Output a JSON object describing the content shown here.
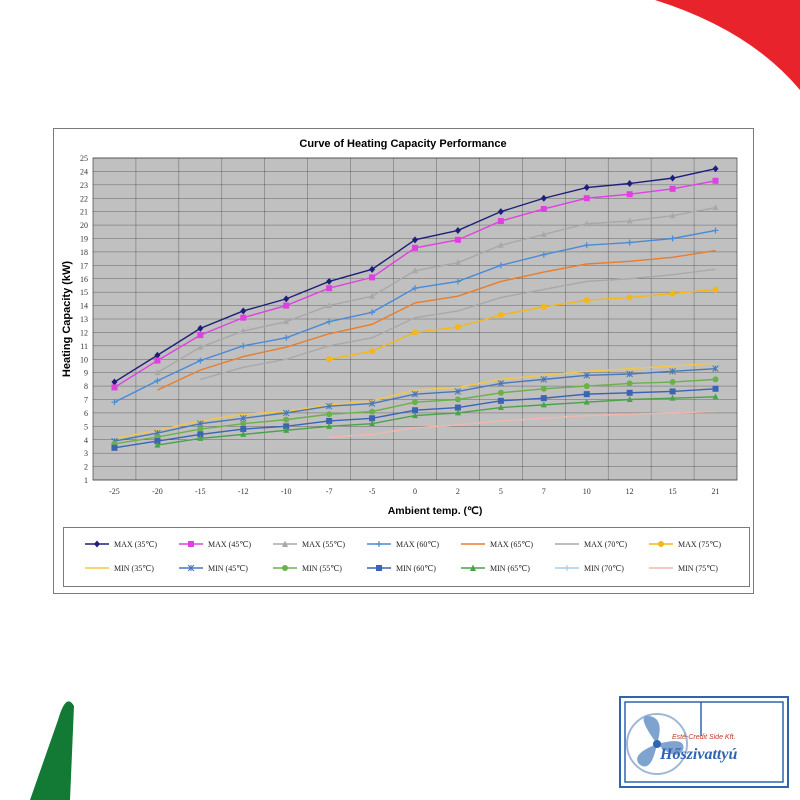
{
  "chart_data": {
    "type": "line",
    "title": "Curve of Heating Capacity Performance",
    "xlabel": "Ambient temp.  (℃)",
    "ylabel": "Heating Capacity (kW)",
    "x_scale": "categorical",
    "categories": [
      "-25",
      "-20",
      "-15",
      "-12",
      "-10",
      "-7",
      "-5",
      "0",
      "2",
      "5",
      "7",
      "10",
      "12",
      "15",
      "21"
    ],
    "ylim": [
      1,
      25
    ],
    "yticks": [
      1,
      2,
      3,
      4,
      5,
      6,
      7,
      8,
      9,
      10,
      11,
      12,
      13,
      14,
      15,
      16,
      17,
      18,
      19,
      20,
      21,
      22,
      23,
      24,
      25
    ],
    "grid": true,
    "legend_position": "bottom",
    "series": [
      {
        "name": "MAX (35℃)",
        "color": "#1f1f7a",
        "marker": "diamond",
        "values": [
          8.3,
          10.3,
          12.3,
          13.6,
          14.5,
          15.8,
          16.7,
          18.9,
          19.6,
          21.0,
          22.0,
          22.8,
          23.1,
          23.5,
          24.2
        ]
      },
      {
        "name": "MAX (45℃)",
        "color": "#e040e0",
        "marker": "square",
        "values": [
          7.9,
          9.9,
          11.8,
          13.1,
          14.0,
          15.3,
          16.1,
          18.3,
          18.9,
          20.3,
          21.2,
          22.0,
          22.3,
          22.7,
          23.3
        ]
      },
      {
        "name": "MAX (55℃)",
        "color": "#a8a8a8",
        "marker": "triangle",
        "values": [
          null,
          9.0,
          10.9,
          12.1,
          12.8,
          14.0,
          14.7,
          16.6,
          17.2,
          18.5,
          19.3,
          20.1,
          20.3,
          20.7,
          21.3
        ]
      },
      {
        "name": "MAX (60℃)",
        "color": "#4a8ad6",
        "marker": "plus",
        "values": [
          6.8,
          8.4,
          9.9,
          11.0,
          11.6,
          12.8,
          13.5,
          15.3,
          15.8,
          17.0,
          17.8,
          18.5,
          18.7,
          19.0,
          19.6
        ]
      },
      {
        "name": "MAX (65℃)",
        "color": "#e87d2b",
        "marker": "none",
        "values": [
          null,
          7.7,
          9.2,
          10.2,
          10.9,
          11.9,
          12.6,
          14.2,
          14.7,
          15.8,
          16.5,
          17.1,
          17.3,
          17.6,
          18.1
        ]
      },
      {
        "name": "MAX (70℃)",
        "color": "#a8a8a8",
        "marker": "none",
        "values": [
          null,
          null,
          8.5,
          9.4,
          10.0,
          11.0,
          11.6,
          13.1,
          13.6,
          14.6,
          15.2,
          15.8,
          16.0,
          16.3,
          16.7
        ]
      },
      {
        "name": "MAX (75℃)",
        "color": "#f3b817",
        "marker": "circle",
        "values": [
          null,
          null,
          null,
          null,
          null,
          10.0,
          10.6,
          12.0,
          12.4,
          13.3,
          13.9,
          14.4,
          14.6,
          14.9,
          15.2
        ]
      },
      {
        "name": "MIN (35℃)",
        "color": "#f3c74a",
        "marker": "none",
        "values": [
          4.1,
          4.7,
          5.4,
          5.9,
          6.1,
          6.6,
          6.9,
          7.7,
          7.9,
          8.5,
          8.8,
          9.1,
          9.3,
          9.5,
          9.7
        ]
      },
      {
        "name": "MIN (45℃)",
        "color": "#4a77b8",
        "marker": "star",
        "values": [
          3.9,
          4.5,
          5.2,
          5.6,
          6.0,
          6.5,
          6.7,
          7.4,
          7.6,
          8.2,
          8.5,
          8.8,
          8.9,
          9.1,
          9.3
        ]
      },
      {
        "name": "MIN (55℃)",
        "color": "#6cb04a",
        "marker": "circle",
        "values": [
          3.7,
          4.2,
          4.8,
          5.2,
          5.5,
          5.9,
          6.1,
          6.8,
          7.0,
          7.5,
          7.8,
          8.0,
          8.2,
          8.3,
          8.5
        ]
      },
      {
        "name": "MIN (60℃)",
        "color": "#3d63b5",
        "marker": "square",
        "values": [
          3.4,
          3.9,
          4.4,
          4.8,
          5.0,
          5.4,
          5.6,
          6.2,
          6.4,
          6.9,
          7.1,
          7.4,
          7.5,
          7.6,
          7.8
        ]
      },
      {
        "name": "MIN (65℃)",
        "color": "#4aa34a",
        "marker": "triangle",
        "values": [
          null,
          3.6,
          4.1,
          4.4,
          4.7,
          5.0,
          5.2,
          5.8,
          6.0,
          6.4,
          6.6,
          6.8,
          7.0,
          7.1,
          7.2
        ]
      },
      {
        "name": "MIN (70℃)",
        "color": "#a9cdea",
        "marker": "plus",
        "values": [
          null,
          null,
          null,
          null,
          null,
          null,
          null,
          null,
          null,
          null,
          null,
          null,
          null,
          null,
          null
        ]
      },
      {
        "name": "MIN (75℃)",
        "color": "#f2b6b0",
        "marker": "none",
        "values": [
          null,
          null,
          null,
          null,
          null,
          4.2,
          4.4,
          4.9,
          5.1,
          5.4,
          5.6,
          5.8,
          5.9,
          6.0,
          6.1
        ]
      }
    ]
  },
  "logo": {
    "company": "Esté-Credit Side Kft.",
    "brand": "Hőszivattyú",
    "accent_red": "#e8232c",
    "accent_green": "#127a35",
    "accent_blue": "#2e64b0"
  }
}
